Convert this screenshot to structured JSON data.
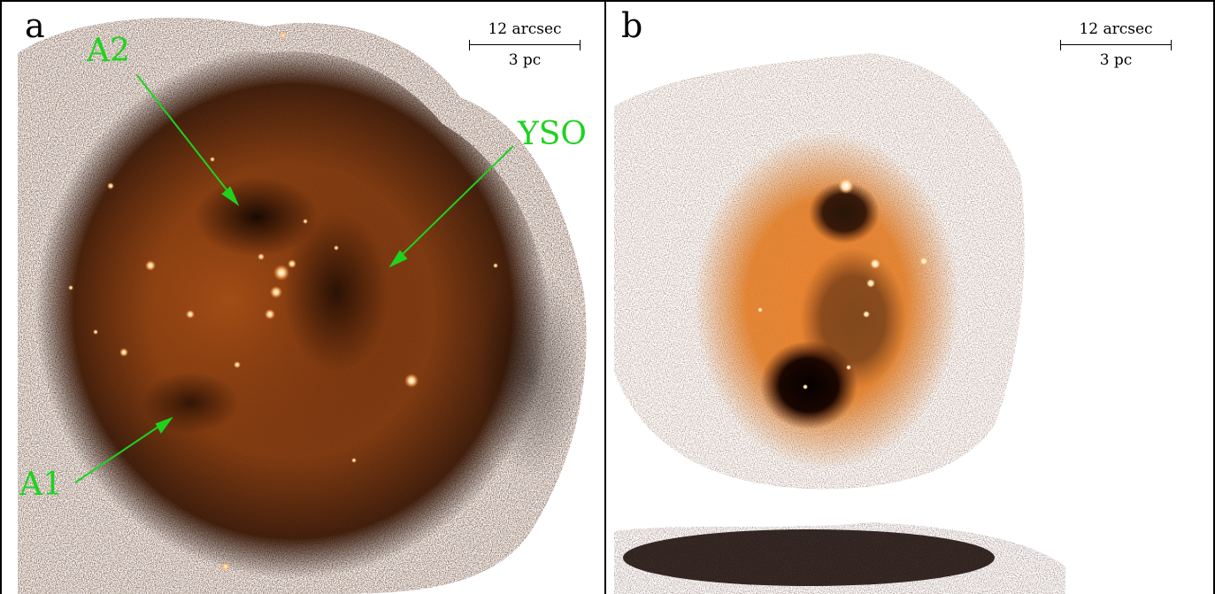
{
  "panels": [
    {
      "letter": "a",
      "scale_top": "12 arcsec",
      "scale_bottom": "3 pc",
      "annotations": {
        "a2": "A2",
        "yso": "YSO",
        "a1": "A1"
      },
      "annotation_color": "#1ed21e"
    },
    {
      "letter": "b",
      "scale_top": "12 arcsec",
      "scale_bottom": "3 pc"
    }
  ],
  "colors": {
    "nebula_dark": "#1a0a02",
    "nebula_mid": "#8a3a0c",
    "nebula_bright": "#f08a2a",
    "frame": "#000000"
  }
}
